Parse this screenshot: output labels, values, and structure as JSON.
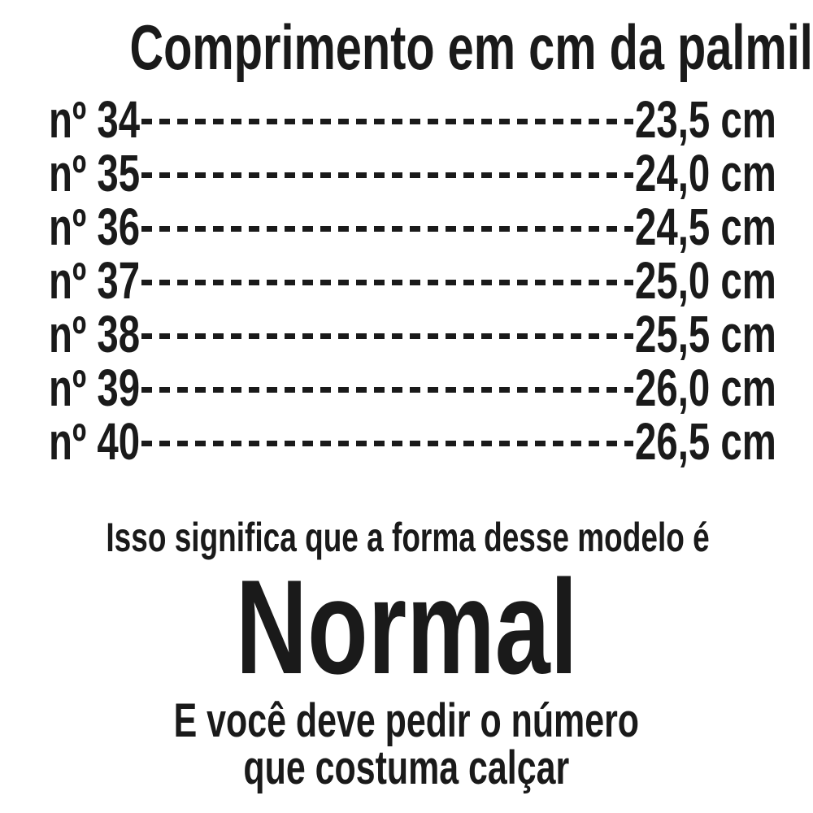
{
  "page": {
    "background": "#ffffff",
    "text_color": "#1a1a1a"
  },
  "title": "Comprimento em cm da palmilha",
  "size_table": {
    "rows": [
      {
        "size_label": "nº 34",
        "length": "23,5 cm"
      },
      {
        "size_label": "nº 35",
        "length": "24,0 cm"
      },
      {
        "size_label": "nº 36",
        "length": "24,5 cm"
      },
      {
        "size_label": "nº 37",
        "length": "25,0 cm"
      },
      {
        "size_label": "nº 38",
        "length": "25,5 cm"
      },
      {
        "size_label": "nº 39",
        "length": "26,0 cm"
      },
      {
        "size_label": "nº 40",
        "length": "26,5 cm"
      }
    ]
  },
  "footer": {
    "line1": "Isso significa que a forma desse modelo é",
    "shape_name": "Normal",
    "line2": "E você deve pedir o número",
    "line3": "que costuma calçar"
  },
  "chart_data": {
    "type": "table",
    "title": "Comprimento em cm da palmilha",
    "rows": [
      [
        "nº 34",
        "23,5 cm"
      ],
      [
        "nº 35",
        "24,0 cm"
      ],
      [
        "nº 36",
        "24,5 cm"
      ],
      [
        "nº 37",
        "25,0 cm"
      ],
      [
        "nº 38",
        "25,5 cm"
      ],
      [
        "nº 39",
        "26,0 cm"
      ],
      [
        "nº 40",
        "26,5 cm"
      ]
    ],
    "sizes": [
      34,
      35,
      36,
      37,
      38,
      39,
      40
    ],
    "lengths_cm": [
      23.5,
      24.0,
      24.5,
      25.0,
      25.5,
      26.0,
      26.5
    ],
    "annotations": [
      "Isso significa que a forma desse modelo é",
      "Normal",
      "E você deve pedir o número que costuma calçar"
    ]
  }
}
